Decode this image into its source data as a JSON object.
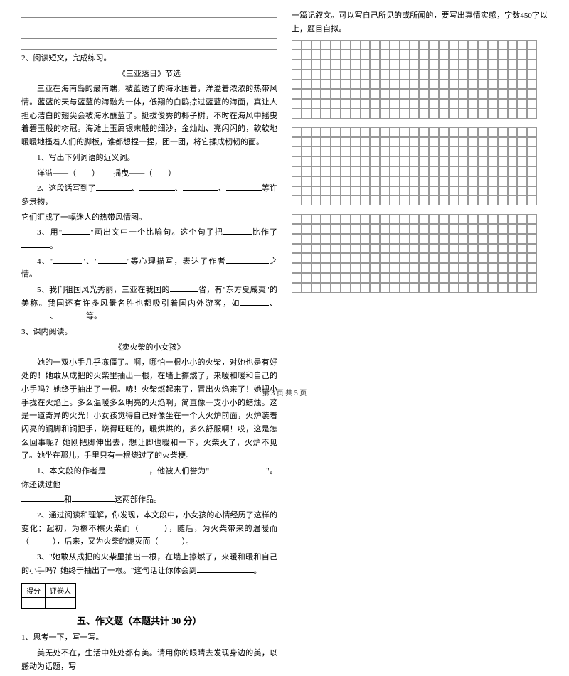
{
  "left": {
    "q2": "2、阅读短文，完成练习。",
    "title1": "《三亚落日》节选",
    "p1": "三亚在海南岛的最南端，被蓝透了的海水围着，洋溢着浓浓的热带风情。蓝蓝的天与蓝蓝的海融为一体，低翔的白鸥掠过蓝蓝的海面，真让人担心洁白的翅尖会被海水蘸蓝了。挺拔俊秀的椰子树，不时在海风中摇曳着碧玉般的树冠。海滩上玉屑银末般的细沙，金灿灿、亮闪闪的，软软地暖暖地搔着人们的脚板，谁都想捏一捏，团一团，将它揉成韧韧的面。",
    "s1": "1、写出下列词语的近义词。",
    "s1a": "洋溢——（　　）",
    "s1b": "摇曳——（　　）",
    "s2a": "2、这段话写到了",
    "s2b": "等许多景物，",
    "s2c": "它们汇成了一幅迷人的热带风情图。",
    "s3a": "3、用\"",
    "s3b": "\"画出文中一个比喻句。这个句子把",
    "s3c": "比作了",
    "s4a": "4、\"",
    "s4b": "\"、\"",
    "s4c": "\"等心理描写，表达了作者",
    "s4d": "之情。",
    "s5a": "5、我们祖国风光秀丽，三亚在我国的",
    "s5b": "省，有\"东方夏威夷\"的美称。我国还有许多风景名胜也都吸引着国内外游客，如",
    "s5c": "等。",
    "q3": "3、课内阅读。",
    "title2": "《卖火柴的小女孩》",
    "p2": "她的一双小手几乎冻僵了。啊，哪怕一根小小的火柴，对她也是有好处的！她敢从成把的火柴里抽出一根，在墙上擦燃了，来暖和暖和自己的小手吗？她终于抽出了一根。哧！火柴燃起来了，冒出火焰来了！她把小手拢在火焰上。多么温暖多么明亮的火焰啊，简直像一支小小的蜡烛。这是一道奇异的火光！小女孩觉得自己好像坐在一个大火炉前面，火炉装着闪亮的铜脚和铜把手，烧得旺旺的，暖烘烘的，多么舒服啊！哎，这是怎么回事呢？她刚把脚伸出去，想让脚也暖和一下，火柴灭了，火炉不见了。她坐在那儿，手里只有一根烧过了的火柴梗。",
    "r1a": "1、本文段的作者是",
    "r1b": "，他被人们誉为\"",
    "r1c": "\"。你还读过他",
    "r1d": "和",
    "r1e": "这两部作品。",
    "r2a": "2、通过阅读和理解，你发现，本文段中，小女孩的心情经历了这样的变化：起初，为檫不檫火柴而（　　　），随后，为火柴带来的温暖而（　　　），后来，又为火柴的熄灭而（　　　）。",
    "r3a": "3、\"她敢从成把的火柴里抽出一根，在墙上擦燃了，来暖和暖和自己的小手吗？她终于抽出了一根。\"这句话让你体会到",
    "score_h1": "得分",
    "score_h2": "评卷人",
    "section5": "五、作文题（本题共计 30 分）",
    "w1": "1、思考一下，写一写。",
    "w2": "美无处不在，生活中处处都有美。请用你的眼睛去发现身边的美，以感动为话题，写"
  },
  "right": {
    "intro": "一篇记叙文。可以写自己所见的或所闻的，要写出真情实感，字数450字以上，题目自拟。",
    "grid": {
      "cols": 25,
      "blocks": [
        8,
        8,
        8
      ],
      "cell_size": 13.8,
      "border_color": "#999999"
    }
  },
  "footer": "第 3 页 共 5 页",
  "colors": {
    "text": "#000000",
    "grid_border": "#999999",
    "rule": "#888888",
    "bg": "#ffffff"
  }
}
